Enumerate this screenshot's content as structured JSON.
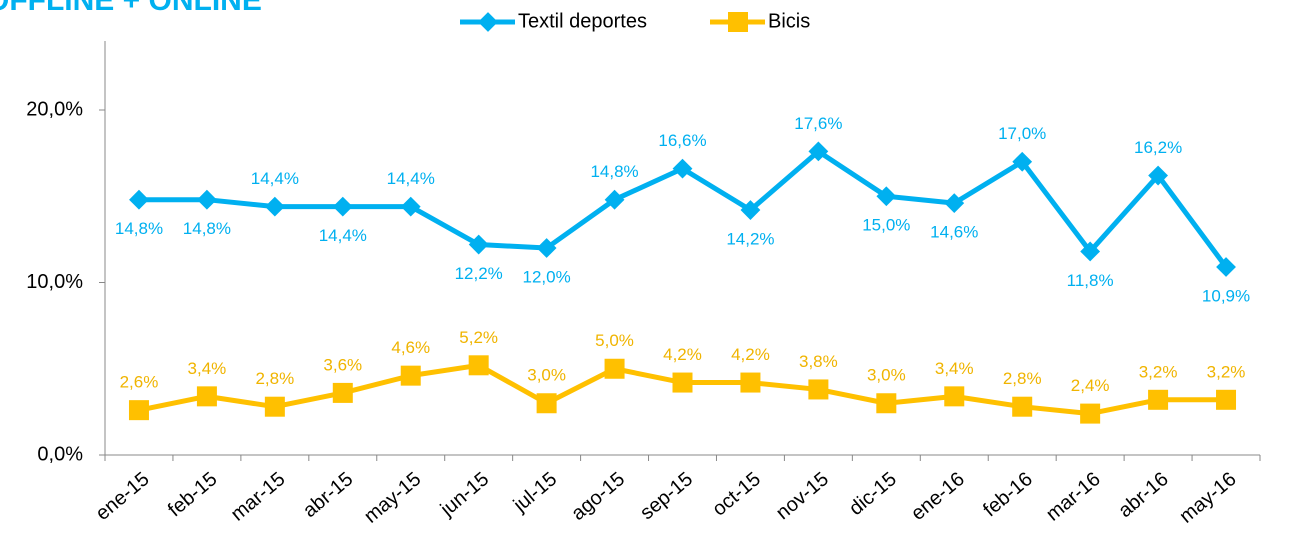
{
  "chart_data": {
    "type": "line",
    "title": "OFFLINE + ONLINE",
    "categories": [
      "ene-15",
      "feb-15",
      "mar-15",
      "abr-15",
      "may-15",
      "jun-15",
      "jul-15",
      "ago-15",
      "sep-15",
      "oct-15",
      "nov-15",
      "dic-15",
      "ene-16",
      "feb-16",
      "mar-16",
      "abr-16",
      "may-16"
    ],
    "series": [
      {
        "name": "Textil deportes",
        "color": "#00b0f0",
        "values": [
          14.8,
          14.8,
          14.4,
          14.4,
          14.4,
          12.2,
          12.0,
          14.8,
          16.6,
          14.2,
          17.6,
          15.0,
          14.6,
          17.0,
          11.8,
          16.2,
          10.9
        ],
        "value_labels": [
          "14,8%",
          "14,8%",
          "14,4%",
          "14,4%",
          "14,4%",
          "12,2%",
          "12,0%",
          "14,8%",
          "16,6%",
          "14,2%",
          "17,6%",
          "15,0%",
          "14,6%",
          "17,0%",
          "11,8%",
          "16,2%",
          "10,9%"
        ]
      },
      {
        "name": "Bicis",
        "color": "#ffc000",
        "values": [
          2.6,
          3.4,
          2.8,
          3.6,
          4.6,
          5.2,
          3.0,
          5.0,
          4.2,
          4.2,
          3.8,
          3.0,
          3.4,
          2.8,
          2.4,
          3.2,
          3.2
        ],
        "value_labels": [
          "2,6%",
          "3,4%",
          "2,8%",
          "3,6%",
          "4,6%",
          "5,2%",
          "3,0%",
          "5,0%",
          "4,2%",
          "4,2%",
          "3,8%",
          "3,0%",
          "3,4%",
          "2,8%",
          "2,4%",
          "3,2%",
          "3,2%"
        ]
      }
    ],
    "ylim": [
      0,
      24
    ],
    "yticks": [
      {
        "value": 0,
        "label": "0,0%"
      },
      {
        "value": 10,
        "label": "10,0%"
      },
      {
        "value": 20,
        "label": "20,0%"
      }
    ],
    "legend": "top"
  }
}
